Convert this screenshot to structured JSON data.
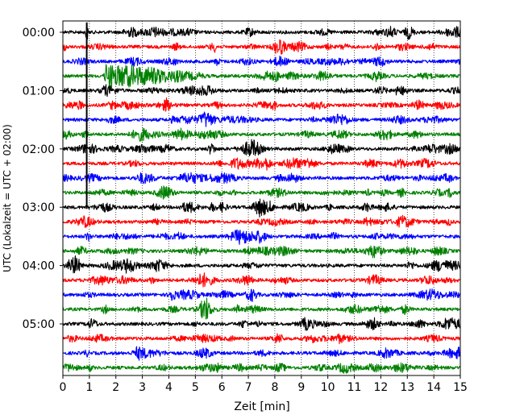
{
  "chart_data": {
    "type": "line",
    "subtype": "helicorder",
    "xlabel": "Zeit  [min]",
    "ylabel": "UTC (Lokalzeit = UTC + 02:00)",
    "xlim": [
      0,
      15
    ],
    "x_ticks": [
      "0",
      "1",
      "2",
      "3",
      "4",
      "5",
      "6",
      "7",
      "8",
      "9",
      "10",
      "11",
      "12",
      "13",
      "14",
      "15"
    ],
    "y_tick_labels": [
      "00:00",
      "01:00",
      "02:00",
      "03:00",
      "04:00",
      "05:00"
    ],
    "grid": "vertical-dotted",
    "trace_colors": [
      "#000000",
      "#ff0000",
      "#0000ff",
      "#008000"
    ],
    "trace_count": 24,
    "trace_interval_min": 15,
    "events": [
      {
        "trace_index": 0,
        "minute": 0.9,
        "color": "#000000",
        "type": "spike"
      },
      {
        "trace_index": 3,
        "minute": 1.6,
        "color": "#008000",
        "type": "earthquake"
      }
    ]
  }
}
